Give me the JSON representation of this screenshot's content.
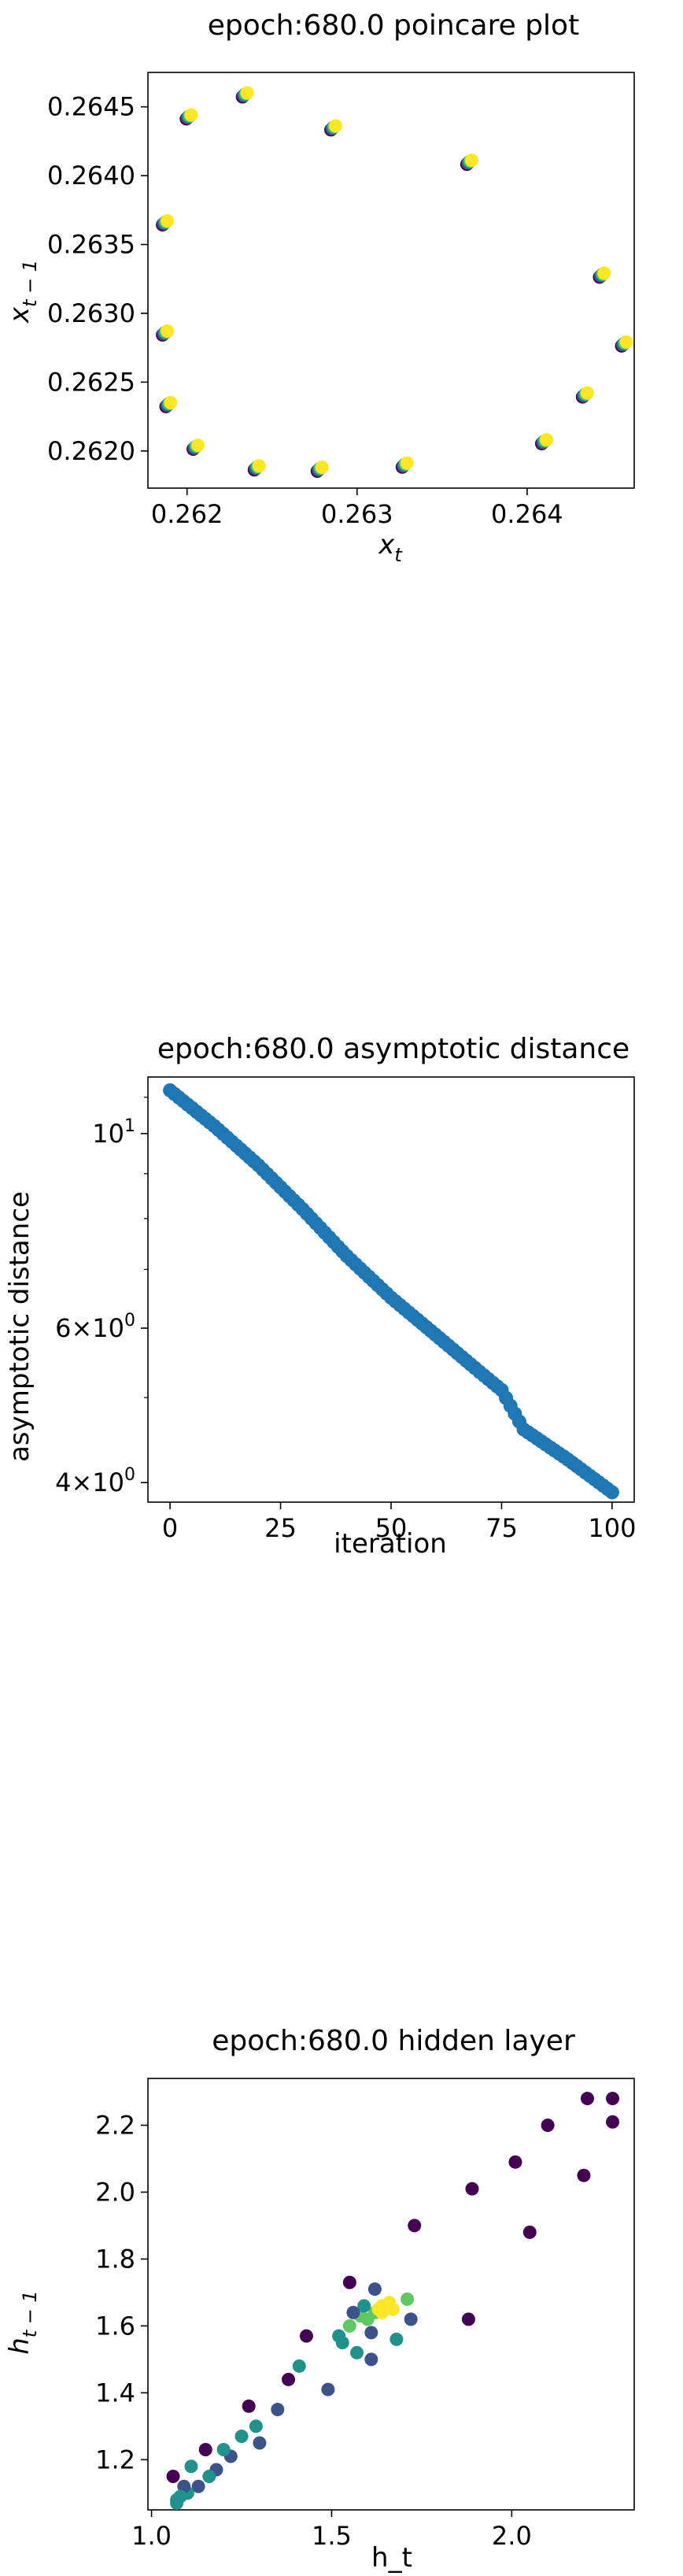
{
  "chart_data": [
    {
      "type": "scatter",
      "title": "epoch:680.0 poincare plot",
      "xlabel_main": "x",
      "xlabel_sub": "t",
      "ylabel_main": "x",
      "ylabel_sub": "t − 1",
      "xlim": [
        0.26177,
        0.26463
      ],
      "ylim": [
        0.26173,
        0.26475
      ],
      "xticks": [
        0.262,
        0.263,
        0.264
      ],
      "xtick_labels": [
        "0.262",
        "0.263",
        "0.264"
      ],
      "yticks": [
        0.262,
        0.2625,
        0.263,
        0.2635,
        0.264,
        0.2645
      ],
      "ytick_labels": [
        "0.2620",
        "0.2625",
        "0.2630",
        "0.2635",
        "0.2640",
        "0.2645"
      ],
      "colormap": [
        "#440154",
        "#3b528b",
        "#21918c",
        "#5ec962",
        "#fde725"
      ],
      "points": [
        {
          "x": 0.26234,
          "y": 0.26459
        },
        {
          "x": 0.26201,
          "y": 0.26443
        },
        {
          "x": 0.26286,
          "y": 0.26435
        },
        {
          "x": 0.26366,
          "y": 0.2641
        },
        {
          "x": 0.26187,
          "y": 0.26366
        },
        {
          "x": 0.26444,
          "y": 0.26328
        },
        {
          "x": 0.26187,
          "y": 0.26286
        },
        {
          "x": 0.26457,
          "y": 0.26278
        },
        {
          "x": 0.26434,
          "y": 0.26241
        },
        {
          "x": 0.26189,
          "y": 0.26234
        },
        {
          "x": 0.2641,
          "y": 0.26207
        },
        {
          "x": 0.26205,
          "y": 0.26203
        },
        {
          "x": 0.26328,
          "y": 0.2619
        },
        {
          "x": 0.26241,
          "y": 0.26188
        },
        {
          "x": 0.26278,
          "y": 0.26187
        }
      ]
    },
    {
      "type": "scatter",
      "title": "epoch:680.0 asymptotic distance",
      "xlabel": "iteration",
      "ylabel": "asymptotic distance",
      "yscale": "log",
      "xlim": [
        -5,
        105
      ],
      "ylim": [
        3.8,
        11.6
      ],
      "xticks": [
        0,
        25,
        50,
        75,
        100
      ],
      "xtick_labels": [
        "0",
        "25",
        "50",
        "75",
        "100"
      ],
      "yticks": [
        4,
        6,
        10
      ],
      "ytick_labels": [
        {
          "base": "4",
          "mult": "×",
          "pow": "10",
          "exp": "0"
        },
        {
          "base": "6",
          "mult": "×",
          "pow": "10",
          "exp": "0"
        },
        {
          "base": "",
          "mult": "",
          "pow": "10",
          "exp": "1"
        }
      ],
      "color": "#1f77b4",
      "x": [
        0,
        10,
        20,
        30,
        40,
        50,
        60,
        70,
        75,
        80,
        90,
        100
      ],
      "y": [
        11.2,
        10.2,
        9.2,
        8.2,
        7.25,
        6.5,
        5.9,
        5.35,
        5.1,
        4.6,
        4.25,
        3.9
      ]
    },
    {
      "type": "scatter",
      "title": "epoch:680.0 hidden layer",
      "xlabel": "h_t",
      "ylabel_main": "h",
      "ylabel_sub": "t − 1",
      "xlim": [
        0.99,
        2.34
      ],
      "ylim": [
        1.05,
        2.34
      ],
      "xticks": [
        1.0,
        1.5,
        2.0
      ],
      "xtick_labels": [
        "1.0",
        "1.5",
        "2.0"
      ],
      "yticks": [
        1.2,
        1.4,
        1.6,
        1.8,
        2.0,
        2.2
      ],
      "ytick_labels": [
        "1.2",
        "1.4",
        "1.6",
        "1.8",
        "2.0",
        "2.2"
      ],
      "colormap": [
        "#440154",
        "#3b528b",
        "#21918c",
        "#5ec962",
        "#fde725"
      ],
      "points": [
        {
          "x": 2.21,
          "y": 2.28,
          "c": 0
        },
        {
          "x": 2.28,
          "y": 2.28,
          "c": 0
        },
        {
          "x": 2.1,
          "y": 2.2,
          "c": 0
        },
        {
          "x": 2.28,
          "y": 2.21,
          "c": 0
        },
        {
          "x": 2.01,
          "y": 2.09,
          "c": 0
        },
        {
          "x": 2.2,
          "y": 2.05,
          "c": 0
        },
        {
          "x": 1.89,
          "y": 2.01,
          "c": 0
        },
        {
          "x": 2.05,
          "y": 1.88,
          "c": 0
        },
        {
          "x": 1.73,
          "y": 1.9,
          "c": 0
        },
        {
          "x": 1.88,
          "y": 1.62,
          "c": 0
        },
        {
          "x": 1.55,
          "y": 1.73,
          "c": 0
        },
        {
          "x": 1.62,
          "y": 1.71,
          "c": 1
        },
        {
          "x": 1.72,
          "y": 1.62,
          "c": 1
        },
        {
          "x": 1.71,
          "y": 1.68,
          "c": 3
        },
        {
          "x": 1.68,
          "y": 1.56,
          "c": 2
        },
        {
          "x": 1.61,
          "y": 1.5,
          "c": 1
        },
        {
          "x": 1.43,
          "y": 1.57,
          "c": 0
        },
        {
          "x": 1.49,
          "y": 1.41,
          "c": 1
        },
        {
          "x": 1.52,
          "y": 1.57,
          "c": 2
        },
        {
          "x": 1.57,
          "y": 1.52,
          "c": 2
        },
        {
          "x": 1.41,
          "y": 1.48,
          "c": 2
        },
        {
          "x": 1.38,
          "y": 1.44,
          "c": 0
        },
        {
          "x": 1.35,
          "y": 1.35,
          "c": 1
        },
        {
          "x": 1.27,
          "y": 1.36,
          "c": 0
        },
        {
          "x": 1.25,
          "y": 1.27,
          "c": 2
        },
        {
          "x": 1.29,
          "y": 1.3,
          "c": 2
        },
        {
          "x": 1.3,
          "y": 1.25,
          "c": 1
        },
        {
          "x": 1.22,
          "y": 1.21,
          "c": 1
        },
        {
          "x": 1.2,
          "y": 1.23,
          "c": 2
        },
        {
          "x": 1.18,
          "y": 1.17,
          "c": 1
        },
        {
          "x": 1.15,
          "y": 1.23,
          "c": 0
        },
        {
          "x": 1.16,
          "y": 1.15,
          "c": 2
        },
        {
          "x": 1.13,
          "y": 1.12,
          "c": 1
        },
        {
          "x": 1.11,
          "y": 1.18,
          "c": 2
        },
        {
          "x": 1.1,
          "y": 1.1,
          "c": 2
        },
        {
          "x": 1.09,
          "y": 1.12,
          "c": 1
        },
        {
          "x": 1.07,
          "y": 1.08,
          "c": 2
        },
        {
          "x": 1.08,
          "y": 1.09,
          "c": 2
        },
        {
          "x": 1.06,
          "y": 1.15,
          "c": 0
        },
        {
          "x": 1.07,
          "y": 1.07,
          "c": 2
        },
        {
          "x": 1.55,
          "y": 1.6,
          "c": 3
        },
        {
          "x": 1.58,
          "y": 1.63,
          "c": 3
        },
        {
          "x": 1.6,
          "y": 1.62,
          "c": 3
        },
        {
          "x": 1.62,
          "y": 1.64,
          "c": 3
        },
        {
          "x": 1.63,
          "y": 1.65,
          "c": 4
        },
        {
          "x": 1.64,
          "y": 1.66,
          "c": 4
        },
        {
          "x": 1.65,
          "y": 1.65,
          "c": 4
        },
        {
          "x": 1.66,
          "y": 1.66,
          "c": 4
        },
        {
          "x": 1.67,
          "y": 1.65,
          "c": 4
        },
        {
          "x": 1.64,
          "y": 1.64,
          "c": 4
        },
        {
          "x": 1.66,
          "y": 1.67,
          "c": 4
        },
        {
          "x": 1.59,
          "y": 1.66,
          "c": 2
        },
        {
          "x": 1.56,
          "y": 1.64,
          "c": 1
        },
        {
          "x": 1.53,
          "y": 1.55,
          "c": 2
        },
        {
          "x": 1.61,
          "y": 1.58,
          "c": 1
        }
      ]
    }
  ]
}
